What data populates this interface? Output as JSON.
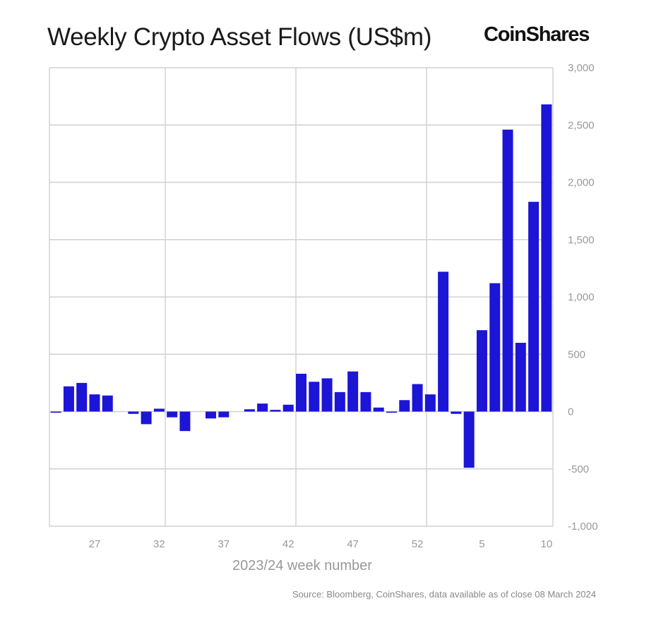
{
  "title": "Weekly Crypto Asset Flows (US$m)",
  "brand": "CoinShares",
  "source": "Source: Bloomberg, CoinShares, data available as of close 08 March 2024",
  "chart_data": {
    "type": "bar",
    "title": "Weekly Crypto Asset Flows (US$m)",
    "xlabel": "2023/24 week number",
    "ylabel": "US$m",
    "ylim": [
      -1000,
      3000
    ],
    "yticks": [
      3000,
      2500,
      2000,
      1500,
      1000,
      500,
      0,
      -500,
      -1000
    ],
    "ytick_labels": [
      "3,000",
      "2,500",
      "2,000",
      "1,500",
      "1,000",
      "500",
      "0",
      "-500",
      "-1,000"
    ],
    "xtick_labels": [
      "27",
      "32",
      "37",
      "42",
      "47",
      "52",
      "5",
      "10"
    ],
    "xtick_indices": [
      3,
      8,
      13,
      18,
      23,
      28,
      33,
      38
    ],
    "grid": true,
    "axis_side": "right",
    "color": "#1c15d6",
    "categories": [
      "24",
      "25",
      "26",
      "27",
      "28",
      "29",
      "30",
      "31",
      "32",
      "33",
      "34",
      "35",
      "36",
      "37",
      "38",
      "39",
      "40",
      "41",
      "42",
      "43",
      "44",
      "45",
      "46",
      "47",
      "48",
      "49",
      "50",
      "51",
      "52",
      "1",
      "2",
      "3",
      "4",
      "5",
      "6",
      "7",
      "8",
      "9",
      "10"
    ],
    "values": [
      -10,
      220,
      250,
      150,
      140,
      0,
      -20,
      -110,
      25,
      -50,
      -170,
      0,
      -60,
      -50,
      0,
      20,
      70,
      15,
      60,
      330,
      260,
      290,
      170,
      350,
      170,
      35,
      -10,
      100,
      240,
      150,
      1220,
      -20,
      -490,
      710,
      1120,
      2460,
      600,
      1830,
      2680
    ]
  }
}
